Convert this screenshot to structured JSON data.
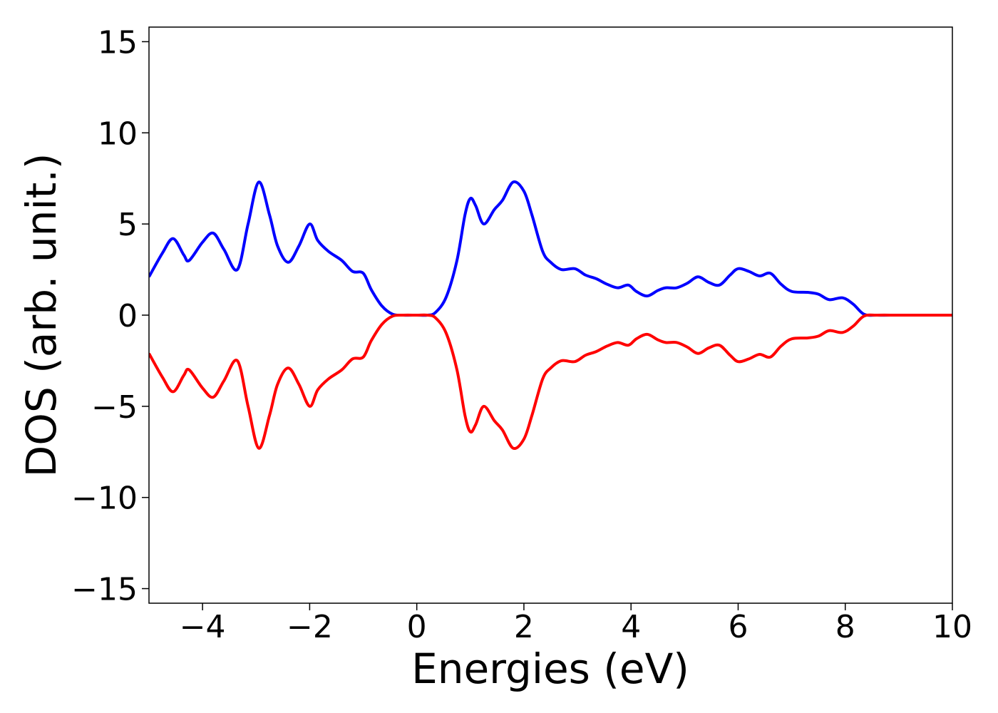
{
  "chart_data": {
    "type": "line",
    "xlabel": "Energies (eV)",
    "ylabel": "DOS (arb. unit.)",
    "xlim": [
      -5,
      10
    ],
    "ylim": [
      -15.8,
      15.8
    ],
    "xticks": [
      -4,
      -2,
      0,
      2,
      4,
      6,
      8,
      10
    ],
    "xtick_labels": [
      "−4",
      "−2",
      "0",
      "2",
      "4",
      "6",
      "8",
      "10"
    ],
    "yticks": [
      -15,
      -10,
      -5,
      0,
      5,
      10,
      15
    ],
    "ytick_labels": [
      "−15",
      "−10",
      "−5",
      "0",
      "5",
      "10",
      "15"
    ],
    "grid": false,
    "legend": "none",
    "series": [
      {
        "color": "#0000ff",
        "x": [
          -5.0,
          -4.75,
          -4.55,
          -4.35,
          -4.25,
          -4.0,
          -3.8,
          -3.6,
          -3.35,
          -3.15,
          -2.95,
          -2.75,
          -2.6,
          -2.4,
          -2.2,
          -2.0,
          -1.85,
          -1.65,
          -1.4,
          -1.2,
          -1.0,
          -0.85,
          -0.65,
          -0.45,
          -0.25,
          0.0,
          0.2,
          0.35,
          0.55,
          0.75,
          0.9,
          1.0,
          1.1,
          1.25,
          1.45,
          1.6,
          1.8,
          2.0,
          2.15,
          2.35,
          2.5,
          2.7,
          2.95,
          3.15,
          3.35,
          3.55,
          3.75,
          3.95,
          4.1,
          4.3,
          4.5,
          4.65,
          4.85,
          5.05,
          5.25,
          5.45,
          5.65,
          5.85,
          6.0,
          6.2,
          6.4,
          6.6,
          6.8,
          7.0,
          7.3,
          7.5,
          7.7,
          7.95,
          8.15,
          8.35,
          8.6,
          9.0,
          9.5,
          10.0
        ],
        "values": [
          2.1,
          3.4,
          4.2,
          3.3,
          3.0,
          4.0,
          4.5,
          3.6,
          2.5,
          5.0,
          7.3,
          5.5,
          3.8,
          2.9,
          3.8,
          5.0,
          4.1,
          3.5,
          3.0,
          2.4,
          2.3,
          1.4,
          0.5,
          0.05,
          0.0,
          0.0,
          0.0,
          0.15,
          1.0,
          3.0,
          5.5,
          6.4,
          6.0,
          5.0,
          5.8,
          6.3,
          7.3,
          6.8,
          5.5,
          3.5,
          2.9,
          2.5,
          2.55,
          2.2,
          2.0,
          1.7,
          1.5,
          1.65,
          1.3,
          1.05,
          1.35,
          1.5,
          1.5,
          1.75,
          2.1,
          1.8,
          1.65,
          2.2,
          2.55,
          2.4,
          2.15,
          2.3,
          1.7,
          1.3,
          1.25,
          1.15,
          0.85,
          0.95,
          0.6,
          0.05,
          0.0,
          0.0,
          0.0,
          0.0
        ]
      },
      {
        "color": "#ff0000",
        "x": [
          -5.0,
          -4.75,
          -4.55,
          -4.35,
          -4.25,
          -4.0,
          -3.8,
          -3.6,
          -3.35,
          -3.15,
          -2.95,
          -2.75,
          -2.6,
          -2.4,
          -2.2,
          -2.0,
          -1.85,
          -1.65,
          -1.4,
          -1.2,
          -1.0,
          -0.85,
          -0.65,
          -0.45,
          -0.25,
          0.0,
          0.2,
          0.35,
          0.55,
          0.75,
          0.9,
          1.0,
          1.1,
          1.25,
          1.45,
          1.6,
          1.8,
          2.0,
          2.15,
          2.35,
          2.5,
          2.7,
          2.95,
          3.15,
          3.35,
          3.55,
          3.75,
          3.95,
          4.1,
          4.3,
          4.5,
          4.65,
          4.85,
          5.05,
          5.25,
          5.45,
          5.65,
          5.85,
          6.0,
          6.2,
          6.4,
          6.6,
          6.8,
          7.0,
          7.3,
          7.5,
          7.7,
          7.95,
          8.15,
          8.35,
          8.6,
          9.0,
          9.5,
          10.0
        ],
        "values": [
          -2.1,
          -3.4,
          -4.2,
          -3.3,
          -3.0,
          -4.0,
          -4.5,
          -3.6,
          -2.5,
          -5.0,
          -7.3,
          -5.5,
          -3.8,
          -2.9,
          -3.8,
          -5.0,
          -4.1,
          -3.5,
          -3.0,
          -2.4,
          -2.3,
          -1.4,
          -0.5,
          -0.05,
          0.0,
          0.0,
          0.0,
          -0.15,
          -1.0,
          -3.0,
          -5.5,
          -6.4,
          -6.0,
          -5.0,
          -5.8,
          -6.3,
          -7.3,
          -6.8,
          -5.5,
          -3.5,
          -2.9,
          -2.5,
          -2.55,
          -2.2,
          -2.0,
          -1.7,
          -1.5,
          -1.65,
          -1.3,
          -1.05,
          -1.35,
          -1.5,
          -1.5,
          -1.75,
          -2.1,
          -1.8,
          -1.65,
          -2.2,
          -2.55,
          -2.4,
          -2.15,
          -2.3,
          -1.7,
          -1.3,
          -1.25,
          -1.15,
          -0.85,
          -0.95,
          -0.6,
          -0.05,
          0.0,
          0.0,
          0.0,
          0.0
        ]
      }
    ]
  }
}
